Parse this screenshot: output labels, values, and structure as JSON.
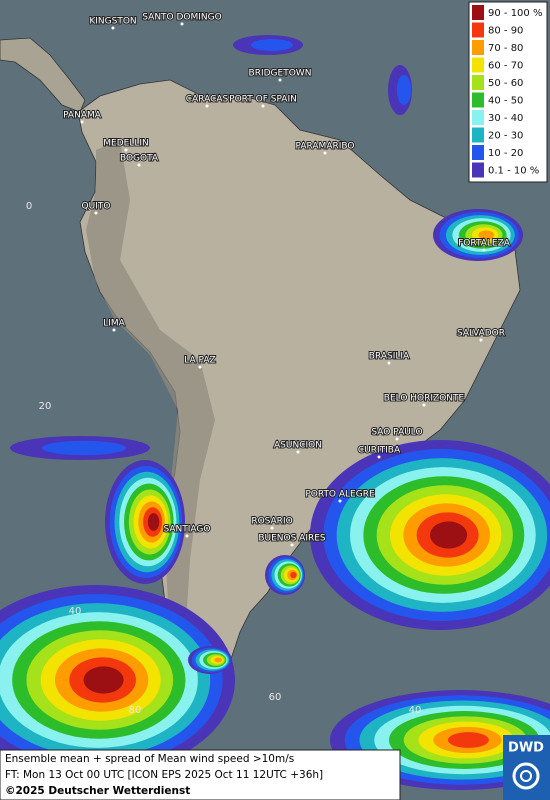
{
  "legend": {
    "entries": [
      {
        "label": "90 - 100 %",
        "color": "#9c0f12"
      },
      {
        "label": "80 - 90",
        "color": "#f2380c"
      },
      {
        "label": "70 - 80",
        "color": "#ff9c00"
      },
      {
        "label": "60 - 70",
        "color": "#f2e400"
      },
      {
        "label": "50 - 60",
        "color": "#a6e21a"
      },
      {
        "label": "40 - 50",
        "color": "#2ebd2a"
      },
      {
        "label": "30 - 40",
        "color": "#8af2ee"
      },
      {
        "label": "20 - 30",
        "color": "#1eb4c4"
      },
      {
        "label": "10 - 20",
        "color": "#2456ee"
      },
      {
        "label": "0.1 - 10 %",
        "color": "#4a34b8"
      }
    ]
  },
  "cities": [
    "KINGSTON",
    "SANTO DOMINGO",
    "BRIDGETOWN",
    "CARACAS",
    "PORT OF SPAIN",
    "PANAMA",
    "MEDELLIN",
    "BOGOTA",
    "PARAMARIBO",
    "QUITO",
    "FORTALEZA",
    "LIMA",
    "SALVADOR",
    "BRASILIA",
    "LA PAZ",
    "BELO HORIZONTE",
    "SAO PAULO",
    "ASUNCION",
    "CURITIBA",
    "PORTO ALEGRE",
    "SANTIAGO",
    "ROSARIO",
    "BUENOS AIRES"
  ],
  "grid_labels": [
    "0",
    "20",
    "40",
    "80",
    "60",
    "40"
  ],
  "footer": {
    "line1": "Ensemble mean + spread of Mean wind speed >10m/s",
    "line2": "FT: Mon 13 Oct 00 UTC [ICON EPS 2025 Oct 11 12UTC +36h]",
    "line3": "©2025 Deutscher Wetterdienst"
  },
  "logo": "DWD"
}
